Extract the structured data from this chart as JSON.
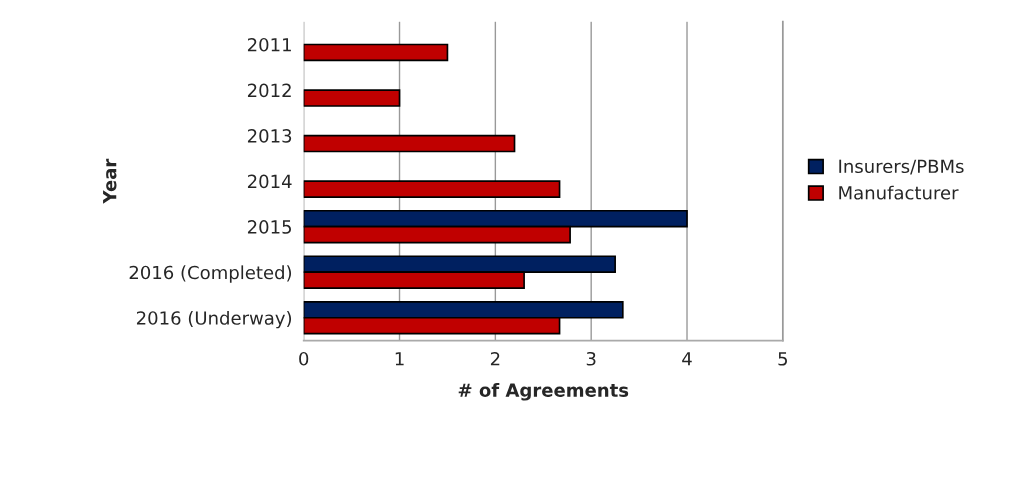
{
  "chart_data": {
    "type": "bar",
    "orientation": "horizontal",
    "xlabel": "# of Agreements",
    "ylabel": "Year",
    "categories": [
      "2011",
      "2012",
      "2013",
      "2014",
      "2015",
      "2016 (Completed)",
      "2016 (Underway)"
    ],
    "series": [
      {
        "name": "Insurers/PBMs",
        "color": "#002060",
        "values": [
          null,
          null,
          null,
          null,
          4.0,
          3.25,
          3.33
        ]
      },
      {
        "name": "Manufacturer",
        "color": "#c00000",
        "values": [
          1.5,
          1.0,
          2.2,
          2.67,
          2.78,
          2.3,
          2.67
        ]
      }
    ],
    "xlim": [
      0,
      5
    ],
    "xticks": [
      0,
      1,
      2,
      3,
      4,
      5
    ],
    "grid": "x",
    "legend": "right"
  }
}
